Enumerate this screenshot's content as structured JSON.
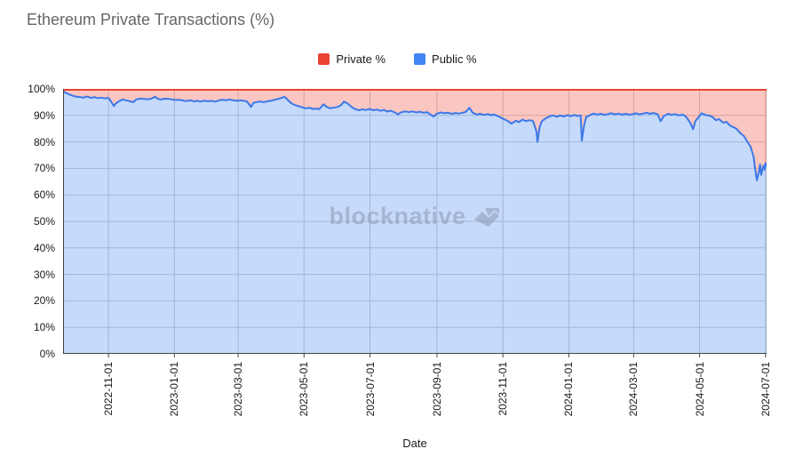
{
  "title": "Ethereum Private Transactions (%)",
  "watermark": "blocknative",
  "legend": [
    {
      "label": "Private %",
      "color": "#EA4335"
    },
    {
      "label": "Public %",
      "color": "#4285F4"
    }
  ],
  "colors": {
    "private_line": "#EA4335",
    "private_fill": "rgba(234,67,53,0.30)",
    "public_line": "#3B78E8",
    "public_fill": "rgba(66,133,244,0.30)",
    "gridline": "#CCCCCC",
    "axis": "#424242",
    "title_text": "#666666",
    "label_text": "#1A1A1A"
  },
  "chart_data": {
    "type": "area",
    "stacked_percent": true,
    "title": "Ethereum Private Transactions (%)",
    "xlabel": "Date",
    "ylabel": "",
    "ylim": [
      0,
      100
    ],
    "grid": true,
    "legend_position": "top",
    "x_range": [
      "2022-09-20",
      "2024-07-02"
    ],
    "xticks": [
      "2022-11-01",
      "2023-01-01",
      "2023-03-01",
      "2023-05-01",
      "2023-07-01",
      "2023-09-01",
      "2023-11-01",
      "2024-01-01",
      "2024-03-01",
      "2024-05-01",
      "2024-07-01"
    ],
    "ytick_values": [
      0,
      10,
      20,
      30,
      40,
      50,
      60,
      70,
      80,
      90,
      100
    ],
    "ytick_labels": [
      "0%",
      "10%",
      "20%",
      "30%",
      "40%",
      "50%",
      "60%",
      "70%",
      "80%",
      "90%",
      "100%"
    ],
    "series": [
      {
        "name": "Public %",
        "color": "#3B78E8",
        "fill": "rgba(66,133,244,0.30)",
        "points": [
          [
            "2022-09-20",
            99.3
          ],
          [
            "2022-09-22",
            98.6
          ],
          [
            "2022-09-26",
            97.9
          ],
          [
            "2022-09-29",
            97.4
          ],
          [
            "2022-10-02",
            97.1
          ],
          [
            "2022-10-06",
            96.9
          ],
          [
            "2022-10-09",
            96.7
          ],
          [
            "2022-10-12",
            97.1
          ],
          [
            "2022-10-16",
            96.6
          ],
          [
            "2022-10-19",
            96.9
          ],
          [
            "2022-10-22",
            96.5
          ],
          [
            "2022-10-25",
            96.7
          ],
          [
            "2022-10-29",
            96.4
          ],
          [
            "2022-11-01",
            96.6
          ],
          [
            "2022-11-03",
            95.5
          ],
          [
            "2022-11-06",
            93.5
          ],
          [
            "2022-11-08",
            94.6
          ],
          [
            "2022-11-11",
            95.4
          ],
          [
            "2022-11-14",
            96.0
          ],
          [
            "2022-11-17",
            95.7
          ],
          [
            "2022-11-21",
            95.3
          ],
          [
            "2022-11-24",
            95.0
          ],
          [
            "2022-11-27",
            96.1
          ],
          [
            "2022-12-01",
            96.3
          ],
          [
            "2022-12-04",
            96.2
          ],
          [
            "2022-12-07",
            96.1
          ],
          [
            "2022-12-10",
            96.2
          ],
          [
            "2022-12-14",
            97.0
          ],
          [
            "2022-12-17",
            96.2
          ],
          [
            "2022-12-20",
            96.0
          ],
          [
            "2022-12-23",
            96.3
          ],
          [
            "2022-12-27",
            96.2
          ],
          [
            "2022-12-30",
            96.0
          ],
          [
            "2023-01-02",
            95.8
          ],
          [
            "2023-01-06",
            95.9
          ],
          [
            "2023-01-09",
            95.6
          ],
          [
            "2023-01-12",
            95.4
          ],
          [
            "2023-01-16",
            95.7
          ],
          [
            "2023-01-19",
            95.3
          ],
          [
            "2023-01-22",
            95.5
          ],
          [
            "2023-01-25",
            95.2
          ],
          [
            "2023-01-29",
            95.6
          ],
          [
            "2023-02-01",
            95.3
          ],
          [
            "2023-02-04",
            95.5
          ],
          [
            "2023-02-08",
            95.2
          ],
          [
            "2023-02-11",
            95.6
          ],
          [
            "2023-02-14",
            95.9
          ],
          [
            "2023-02-18",
            95.7
          ],
          [
            "2023-02-21",
            96.0
          ],
          [
            "2023-02-24",
            95.7
          ],
          [
            "2023-02-28",
            95.5
          ],
          [
            "2023-03-03",
            95.7
          ],
          [
            "2023-03-06",
            95.5
          ],
          [
            "2023-03-09",
            95.3
          ],
          [
            "2023-03-13",
            93.2
          ],
          [
            "2023-03-15",
            94.7
          ],
          [
            "2023-03-18",
            95.0
          ],
          [
            "2023-03-21",
            95.2
          ],
          [
            "2023-03-25",
            95.0
          ],
          [
            "2023-03-28",
            95.3
          ],
          [
            "2023-03-31",
            95.5
          ],
          [
            "2023-04-04",
            95.9
          ],
          [
            "2023-04-08",
            96.3
          ],
          [
            "2023-04-13",
            97.0
          ],
          [
            "2023-04-16",
            95.8
          ],
          [
            "2023-04-19",
            94.6
          ],
          [
            "2023-04-22",
            94.0
          ],
          [
            "2023-04-26",
            93.5
          ],
          [
            "2023-04-29",
            93.1
          ],
          [
            "2023-05-02",
            92.7
          ],
          [
            "2023-05-06",
            92.9
          ],
          [
            "2023-05-09",
            92.4
          ],
          [
            "2023-05-12",
            92.6
          ],
          [
            "2023-05-15",
            92.3
          ],
          [
            "2023-05-19",
            94.2
          ],
          [
            "2023-05-22",
            93.2
          ],
          [
            "2023-05-25",
            92.7
          ],
          [
            "2023-05-28",
            92.9
          ],
          [
            "2023-06-01",
            93.2
          ],
          [
            "2023-06-04",
            93.8
          ],
          [
            "2023-06-07",
            95.2
          ],
          [
            "2023-06-11",
            94.3
          ],
          [
            "2023-06-14",
            93.2
          ],
          [
            "2023-06-17",
            92.4
          ],
          [
            "2023-06-21",
            91.9
          ],
          [
            "2023-06-24",
            92.3
          ],
          [
            "2023-06-27",
            92.0
          ],
          [
            "2023-07-01",
            92.4
          ],
          [
            "2023-07-04",
            91.9
          ],
          [
            "2023-07-07",
            92.2
          ],
          [
            "2023-07-11",
            91.7
          ],
          [
            "2023-07-14",
            92.1
          ],
          [
            "2023-07-17",
            91.4
          ],
          [
            "2023-07-20",
            91.8
          ],
          [
            "2023-07-24",
            91.1
          ],
          [
            "2023-07-27",
            90.4
          ],
          [
            "2023-07-30",
            91.2
          ],
          [
            "2023-08-03",
            91.5
          ],
          [
            "2023-08-06",
            91.2
          ],
          [
            "2023-08-09",
            91.5
          ],
          [
            "2023-08-13",
            91.1
          ],
          [
            "2023-08-16",
            91.4
          ],
          [
            "2023-08-19",
            91.0
          ],
          [
            "2023-08-23",
            91.2
          ],
          [
            "2023-08-26",
            90.3
          ],
          [
            "2023-08-29",
            89.6
          ],
          [
            "2023-09-01",
            90.7
          ],
          [
            "2023-09-05",
            91.1
          ],
          [
            "2023-09-08",
            90.8
          ],
          [
            "2023-09-11",
            91.0
          ],
          [
            "2023-09-15",
            90.6
          ],
          [
            "2023-09-18",
            90.9
          ],
          [
            "2023-09-21",
            90.7
          ],
          [
            "2023-09-25",
            91.0
          ],
          [
            "2023-09-28",
            91.4
          ],
          [
            "2023-10-01",
            92.9
          ],
          [
            "2023-10-04",
            91.0
          ],
          [
            "2023-10-08",
            90.3
          ],
          [
            "2023-10-11",
            90.6
          ],
          [
            "2023-10-14",
            90.2
          ],
          [
            "2023-10-18",
            90.5
          ],
          [
            "2023-10-21",
            90.1
          ],
          [
            "2023-10-24",
            90.3
          ],
          [
            "2023-10-28",
            89.6
          ],
          [
            "2023-10-31",
            89.0
          ],
          [
            "2023-11-03",
            88.4
          ],
          [
            "2023-11-06",
            87.8
          ],
          [
            "2023-11-09",
            86.9
          ],
          [
            "2023-11-13",
            88.0
          ],
          [
            "2023-11-16",
            87.5
          ],
          [
            "2023-11-19",
            88.4
          ],
          [
            "2023-11-22",
            87.9
          ],
          [
            "2023-11-26",
            88.2
          ],
          [
            "2023-11-29",
            87.8
          ],
          [
            "2023-12-02",
            84.0
          ],
          [
            "2023-12-03",
            80.0
          ],
          [
            "2023-12-05",
            85.5
          ],
          [
            "2023-12-07",
            87.8
          ],
          [
            "2023-12-11",
            89.0
          ],
          [
            "2023-12-14",
            89.6
          ],
          [
            "2023-12-17",
            90.0
          ],
          [
            "2023-12-21",
            89.5
          ],
          [
            "2023-12-24",
            90.0
          ],
          [
            "2023-12-27",
            89.6
          ],
          [
            "2023-12-31",
            90.1
          ],
          [
            "2024-01-03",
            89.7
          ],
          [
            "2024-01-06",
            90.2
          ],
          [
            "2024-01-09",
            89.8
          ],
          [
            "2024-01-12",
            90.0
          ],
          [
            "2024-01-13",
            80.5
          ],
          [
            "2024-01-15",
            86.0
          ],
          [
            "2024-01-17",
            89.3
          ],
          [
            "2024-01-21",
            90.2
          ],
          [
            "2024-01-24",
            90.7
          ],
          [
            "2024-01-27",
            90.3
          ],
          [
            "2024-01-31",
            90.6
          ],
          [
            "2024-02-03",
            90.2
          ],
          [
            "2024-02-06",
            90.5
          ],
          [
            "2024-02-09",
            90.8
          ],
          [
            "2024-02-13",
            90.4
          ],
          [
            "2024-02-16",
            90.7
          ],
          [
            "2024-02-19",
            90.3
          ],
          [
            "2024-02-23",
            90.6
          ],
          [
            "2024-02-26",
            90.2
          ],
          [
            "2024-02-29",
            90.5
          ],
          [
            "2024-03-03",
            90.8
          ],
          [
            "2024-03-06",
            90.4
          ],
          [
            "2024-03-10",
            90.7
          ],
          [
            "2024-03-13",
            91.0
          ],
          [
            "2024-03-16",
            90.6
          ],
          [
            "2024-03-19",
            90.9
          ],
          [
            "2024-03-23",
            90.5
          ],
          [
            "2024-03-26",
            87.8
          ],
          [
            "2024-03-29",
            89.8
          ],
          [
            "2024-04-02",
            90.6
          ],
          [
            "2024-04-05",
            90.2
          ],
          [
            "2024-04-08",
            90.5
          ],
          [
            "2024-04-12",
            90.0
          ],
          [
            "2024-04-15",
            90.3
          ],
          [
            "2024-04-18",
            89.7
          ],
          [
            "2024-04-22",
            87.5
          ],
          [
            "2024-04-25",
            84.8
          ],
          [
            "2024-04-27",
            87.8
          ],
          [
            "2024-04-30",
            89.3
          ],
          [
            "2024-05-03",
            90.8
          ],
          [
            "2024-05-06",
            90.2
          ],
          [
            "2024-05-10",
            89.9
          ],
          [
            "2024-05-13",
            89.4
          ],
          [
            "2024-05-16",
            88.2
          ],
          [
            "2024-05-19",
            88.6
          ],
          [
            "2024-05-23",
            87.2
          ],
          [
            "2024-05-26",
            87.6
          ],
          [
            "2024-05-29",
            86.2
          ],
          [
            "2024-06-01",
            85.6
          ],
          [
            "2024-06-04",
            85.0
          ],
          [
            "2024-06-08",
            83.2
          ],
          [
            "2024-06-11",
            82.2
          ],
          [
            "2024-06-14",
            80.2
          ],
          [
            "2024-06-17",
            78.3
          ],
          [
            "2024-06-20",
            74.5
          ],
          [
            "2024-06-21",
            71.0
          ],
          [
            "2024-06-23",
            65.5
          ],
          [
            "2024-06-25",
            69.0
          ],
          [
            "2024-06-26",
            71.5
          ],
          [
            "2024-06-27",
            67.5
          ],
          [
            "2024-06-29",
            71.0
          ],
          [
            "2024-06-30",
            69.5
          ],
          [
            "2024-07-01",
            72.0
          ],
          [
            "2024-07-02",
            70.5
          ]
        ]
      },
      {
        "name": "Private %",
        "color": "#EA4335",
        "fill": "rgba(234,67,53,0.30)",
        "derived": "100 minus Public % (stacked to 100%)"
      }
    ]
  }
}
